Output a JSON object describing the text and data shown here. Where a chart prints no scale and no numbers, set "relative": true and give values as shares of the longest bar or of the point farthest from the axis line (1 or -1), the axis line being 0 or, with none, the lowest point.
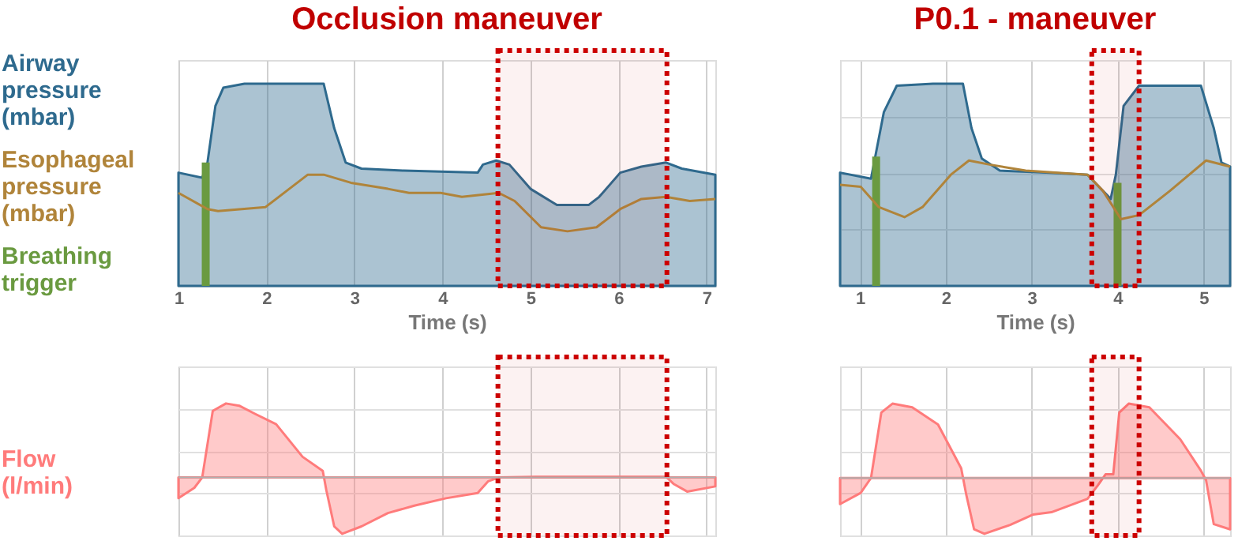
{
  "chart_data": [
    {
      "type": "area",
      "title": "Occlusion maneuver",
      "xlabel": "Time (s)",
      "xlim": [
        1,
        7.1
      ],
      "xticks": [
        1,
        2,
        3,
        4,
        5,
        6,
        7
      ],
      "relative": true,
      "grid": "x",
      "legend": "left",
      "bands": [
        {
          "axis": "x",
          "from": 4.63,
          "to": 6.55,
          "color": "#cc0000"
        }
      ],
      "series": [
        {
          "name": "Airway pressure (mbar)",
          "color": "#2e6a8e",
          "x": [
            1.0,
            1.27,
            1.33,
            1.42,
            1.51,
            1.75,
            2.35,
            2.65,
            2.77,
            2.9,
            3.08,
            3.56,
            4.4,
            4.46,
            4.61,
            4.76,
            5.0,
            5.3,
            5.66,
            5.78,
            6.02,
            6.26,
            6.54,
            6.72,
            7.1
          ],
          "values": [
            0.56,
            0.535,
            0.61,
            0.89,
            0.98,
            1.0,
            1.0,
            1.0,
            0.78,
            0.61,
            0.58,
            0.57,
            0.56,
            0.6,
            0.62,
            0.6,
            0.48,
            0.4,
            0.4,
            0.44,
            0.56,
            0.59,
            0.61,
            0.58,
            0.55
          ]
        },
        {
          "name": "Esophageal pressure (mbar)",
          "type": "line",
          "color": "#b0843a",
          "x": [
            1.0,
            1.33,
            1.45,
            1.99,
            2.23,
            2.47,
            2.65,
            2.96,
            3.38,
            3.62,
            3.98,
            4.22,
            4.64,
            4.82,
            5.12,
            5.42,
            5.75,
            6.02,
            6.26,
            6.54,
            6.81,
            7.1
          ],
          "values": [
            0.46,
            0.38,
            0.37,
            0.39,
            0.47,
            0.55,
            0.55,
            0.51,
            0.48,
            0.46,
            0.46,
            0.44,
            0.46,
            0.42,
            0.29,
            0.27,
            0.29,
            0.38,
            0.43,
            0.44,
            0.42,
            0.43
          ]
        },
        {
          "name": "Breathing trigger",
          "type": "bar",
          "color": "#6a9a40",
          "x": [
            1.31
          ],
          "values": [
            0.61
          ]
        }
      ]
    },
    {
      "type": "area",
      "title": "P0.1 - maneuver",
      "xlabel": "Time (s)",
      "xlim": [
        0.77,
        5.31
      ],
      "xticks": [
        1,
        2,
        3,
        4,
        5
      ],
      "relative": true,
      "grid": true,
      "bands": [
        {
          "axis": "x",
          "from": 3.7,
          "to": 4.25,
          "color": "#cc0000"
        }
      ],
      "series": [
        {
          "color": "#2e6a8e",
          "x": [
            0.77,
            1.13,
            1.28,
            1.43,
            1.85,
            2.2,
            2.3,
            2.42,
            2.63,
            3.17,
            3.65,
            3.92,
            3.98,
            4.07,
            4.25,
            4.97,
            5.12,
            5.21,
            5.31
          ],
          "values": [
            0.56,
            0.53,
            0.86,
            0.99,
            1.0,
            1.0,
            0.78,
            0.63,
            0.57,
            0.56,
            0.55,
            0.43,
            0.55,
            0.89,
            0.99,
            0.99,
            0.78,
            0.61,
            0.59
          ]
        },
        {
          "type": "line",
          "color": "#b0843a",
          "x": [
            0.77,
            1.01,
            1.22,
            1.52,
            1.73,
            2.06,
            2.27,
            2.51,
            2.93,
            3.65,
            3.83,
            4.04,
            4.25,
            4.61,
            5.03,
            5.31
          ],
          "values": [
            0.5,
            0.49,
            0.39,
            0.34,
            0.39,
            0.55,
            0.62,
            0.6,
            0.57,
            0.55,
            0.47,
            0.33,
            0.35,
            0.47,
            0.62,
            0.59
          ]
        },
        {
          "type": "bar",
          "color": "#6a9a40",
          "x": [
            1.19,
            4.0
          ],
          "values": [
            0.64,
            0.51
          ]
        }
      ]
    },
    {
      "type": "area",
      "xlim": [
        1,
        7.1
      ],
      "xticks": [
        1,
        2,
        3,
        4,
        5,
        6,
        7
      ],
      "relative": true,
      "grid": true,
      "tick_labels": false,
      "bands": [
        {
          "axis": "x",
          "from": 4.63,
          "to": 6.55,
          "color": "#cc0000"
        }
      ],
      "series": [
        {
          "name": "Flow (l/min)",
          "color": "#ff7b7b",
          "x": [
            1.0,
            1.18,
            1.27,
            1.39,
            1.54,
            1.69,
            1.87,
            2.11,
            2.41,
            2.64,
            2.68,
            2.77,
            2.86,
            3.08,
            3.38,
            3.68,
            4.04,
            4.4,
            4.52,
            4.64,
            5.06,
            6.54,
            6.63,
            6.78,
            7.1
          ],
          "values": [
            -0.28,
            -0.14,
            0,
            0.9,
            1.0,
            0.97,
            0.86,
            0.72,
            0.28,
            0.09,
            -0.17,
            -0.66,
            -0.76,
            -0.66,
            -0.48,
            -0.38,
            -0.28,
            -0.21,
            -0.05,
            0,
            0.01,
            0.01,
            -0.09,
            -0.19,
            -0.12
          ]
        }
      ]
    },
    {
      "type": "area",
      "xlim": [
        0.77,
        5.31
      ],
      "xticks": [
        1,
        2,
        3,
        4,
        5
      ],
      "relative": true,
      "grid": true,
      "tick_labels": false,
      "bands": [
        {
          "axis": "x",
          "from": 3.7,
          "to": 4.25,
          "color": "#cc0000"
        }
      ],
      "series": [
        {
          "color": "#ff7b7b",
          "x": [
            0.77,
            1.01,
            1.13,
            1.25,
            1.38,
            1.61,
            1.91,
            2.18,
            2.24,
            2.33,
            2.45,
            2.75,
            3.02,
            3.23,
            3.65,
            3.77,
            3.86,
            3.95,
            4.02,
            4.13,
            4.37,
            4.73,
            4.97,
            5.03,
            5.12,
            5.31
          ],
          "values": [
            -0.35,
            -0.2,
            0,
            0.88,
            1.0,
            0.95,
            0.72,
            0.13,
            -0.23,
            -0.69,
            -0.75,
            -0.63,
            -0.49,
            -0.46,
            -0.28,
            -0.1,
            0.05,
            0.05,
            0.88,
            1.0,
            0.95,
            0.52,
            0.1,
            -0.03,
            -0.62,
            -0.69
          ]
        }
      ]
    }
  ]
}
